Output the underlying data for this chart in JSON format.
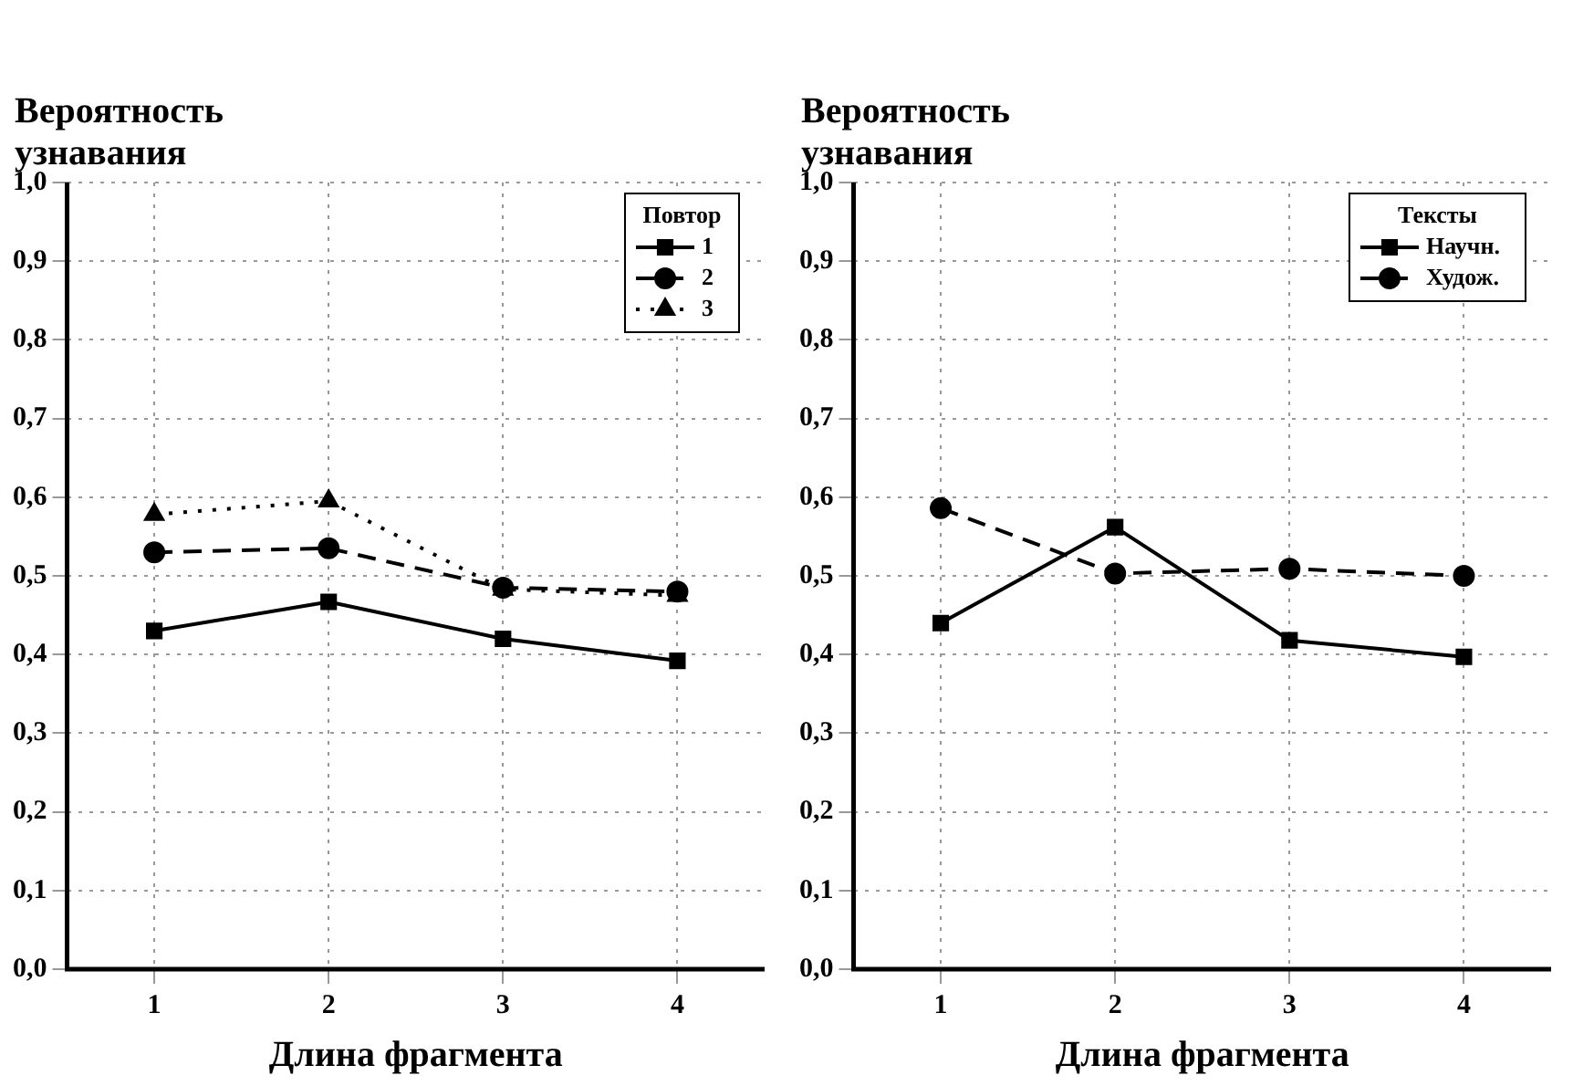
{
  "chart_data": [
    {
      "type": "line",
      "ylabel": "Вероятность узнавания",
      "xlabel": "Длина фрагмента",
      "legend_title": "Повтор",
      "categories": [
        "1",
        "2",
        "3",
        "4"
      ],
      "series": [
        {
          "name": "1",
          "color": "#000000",
          "marker": "square",
          "line_style": "solid",
          "values": [
            0.43,
            0.467,
            0.42,
            0.392
          ]
        },
        {
          "name": "2",
          "color": "#000000",
          "marker": "circle",
          "line_style": "dashed",
          "values": [
            0.53,
            0.535,
            0.485,
            0.48
          ]
        },
        {
          "name": "3",
          "color": "#000000",
          "marker": "triangle",
          "line_style": "dotted",
          "values": [
            0.578,
            0.595,
            0.483,
            0.475
          ]
        }
      ],
      "ylim": [
        0,
        1
      ],
      "yticks": [
        {
          "value": 0,
          "label": "0,0"
        },
        {
          "value": 0.1,
          "label": "0,1"
        },
        {
          "value": 0.2,
          "label": "0,2"
        },
        {
          "value": 0.3,
          "label": "0,3"
        },
        {
          "value": 0.4,
          "label": "0,4"
        },
        {
          "value": 0.5,
          "label": "0,5"
        },
        {
          "value": 0.6,
          "label": "0,6"
        },
        {
          "value": 0.7,
          "label": "0,7"
        },
        {
          "value": 0.8,
          "label": "0,8"
        },
        {
          "value": 0.9,
          "label": "0,9"
        },
        {
          "value": 1,
          "label": "1,0"
        }
      ],
      "grid": true,
      "legend": "top right"
    },
    {
      "type": "line",
      "ylabel": "Вероятность узнавания",
      "xlabel": "Длина фрагмента",
      "legend_title": "Тексты",
      "categories": [
        "1",
        "2",
        "3",
        "4"
      ],
      "series": [
        {
          "name": "Научн.",
          "color": "#000000",
          "marker": "square",
          "line_style": "solid",
          "values": [
            0.44,
            0.562,
            0.418,
            0.397
          ]
        },
        {
          "name": "Худож.",
          "color": "#000000",
          "marker": "circle",
          "line_style": "dashed",
          "values": [
            0.586,
            0.503,
            0.509,
            0.5
          ]
        }
      ],
      "ylim": [
        0,
        1
      ],
      "yticks": [
        {
          "value": 0,
          "label": "0,0"
        },
        {
          "value": 0.1,
          "label": "0,1"
        },
        {
          "value": 0.2,
          "label": "0,2"
        },
        {
          "value": 0.3,
          "label": "0,3"
        },
        {
          "value": 0.4,
          "label": "0,4"
        },
        {
          "value": 0.5,
          "label": "0,5"
        },
        {
          "value": 0.6,
          "label": "0,6"
        },
        {
          "value": 0.7,
          "label": "0,7"
        },
        {
          "value": 0.8,
          "label": "0,8"
        },
        {
          "value": 0.9,
          "label": "0,9"
        },
        {
          "value": 1,
          "label": "1,0"
        }
      ],
      "grid": true,
      "legend": "top right"
    }
  ]
}
